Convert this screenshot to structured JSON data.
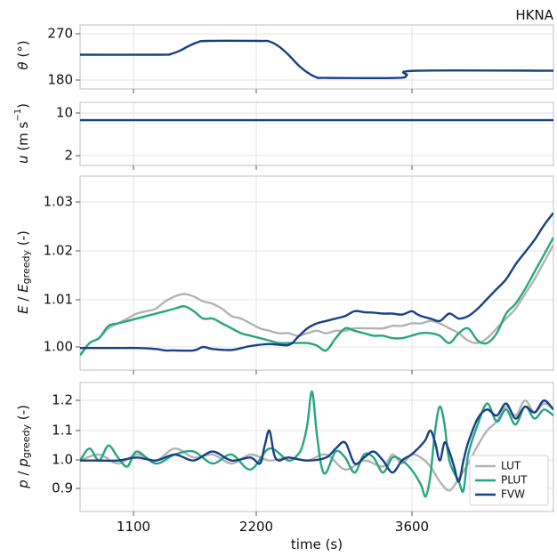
{
  "figure_title": "HKNA",
  "x_label": "time (s)",
  "x_ticks": [
    "1100",
    "2200",
    "3600"
  ],
  "colors": {
    "LUT": "#b3b3b3",
    "PLUT": "#26a67e",
    "FVW": "#183f86",
    "grid": "#e3e3e3",
    "spine": "#c8c8c8"
  },
  "legend": [
    "LUT",
    "PLUT",
    "FVW"
  ],
  "chart_data": [
    {
      "type": "line",
      "ylabel": "θ (°)",
      "yticks": [
        "180",
        "270"
      ],
      "ylim": [
        168,
        284
      ],
      "xlim": [
        0,
        5000
      ],
      "series": [
        {
          "name": "FVW",
          "x": [
            0,
            850,
            950,
            1050,
            1150,
            1250,
            1350,
            1900,
            2000,
            2100,
            2200,
            2300,
            2400,
            2500,
            2600,
            3350,
            3450,
            3550,
            5000
          ],
          "y": [
            230,
            230,
            231,
            237,
            246,
            253,
            255,
            255,
            254,
            245,
            230,
            212,
            198,
            189,
            188,
            188,
            193,
            201,
            201
          ]
        }
      ]
    },
    {
      "type": "line",
      "ylabel": "u (ms⁻¹)",
      "yticks": [
        "2",
        "10"
      ],
      "ylim": [
        0,
        12
      ],
      "xlim": [
        0,
        5000
      ],
      "series": [
        {
          "name": "FVW",
          "x": [
            0,
            5000
          ],
          "y": [
            8.6,
            8.6
          ]
        }
      ]
    },
    {
      "type": "line",
      "ylabel": "E / E_greedy (-)",
      "yticks": [
        "1.00",
        "1.01",
        "1.02",
        "1.03"
      ],
      "ylim": [
        0.9955,
        1.035
      ],
      "xlim": [
        0,
        5000
      ],
      "series": [
        {
          "name": "LUT",
          "x": [
            0,
            100,
            200,
            300,
            400,
            500,
            600,
            700,
            800,
            900,
            1000,
            1100,
            1200,
            1300,
            1400,
            1500,
            1600,
            1700,
            1800,
            1900,
            2000,
            2100,
            2200,
            2300,
            2400,
            2500,
            2600,
            2700,
            2800,
            2900,
            3000,
            3100,
            3200,
            3300,
            3400,
            3500,
            3600,
            3700,
            3800,
            3900,
            4000,
            4100,
            4200,
            4300,
            4400,
            4500,
            4600,
            4700,
            4800,
            4900,
            5000
          ],
          "y": [
            0.9985,
            1.001,
            1.002,
            1.004,
            1.005,
            1.006,
            1.007,
            1.0075,
            1.008,
            1.0095,
            1.0105,
            1.011,
            1.0105,
            1.0095,
            1.009,
            1.008,
            1.0065,
            1.006,
            1.005,
            1.004,
            1.0035,
            1.003,
            1.003,
            1.0025,
            1.003,
            1.0035,
            1.003,
            1.0035,
            1.0035,
            1.004,
            1.004,
            1.004,
            1.004,
            1.0045,
            1.0045,
            1.005,
            1.005,
            1.0055,
            1.005,
            1.004,
            1.003,
            1.0015,
            1.001,
            1.002,
            1.004,
            1.006,
            1.008,
            1.011,
            1.014,
            1.0175,
            1.021
          ]
        },
        {
          "name": "PLUT",
          "x": [
            0,
            100,
            200,
            300,
            400,
            500,
            600,
            700,
            800,
            900,
            1000,
            1100,
            1200,
            1300,
            1400,
            1500,
            1600,
            1700,
            1800,
            1900,
            2000,
            2100,
            2200,
            2300,
            2400,
            2500,
            2600,
            2700,
            2800,
            2900,
            3000,
            3100,
            3200,
            3300,
            3400,
            3500,
            3600,
            3700,
            3800,
            3900,
            4000,
            4100,
            4200,
            4300,
            4400,
            4500,
            4600,
            4700,
            4800,
            4900,
            5000
          ],
          "y": [
            0.9985,
            1.001,
            1.002,
            1.0045,
            1.005,
            1.0055,
            1.006,
            1.0065,
            1.007,
            1.0075,
            1.008,
            1.0085,
            1.0075,
            1.006,
            1.006,
            1.005,
            1.004,
            1.003,
            1.0025,
            1.002,
            1.0015,
            1.001,
            1.001,
            1.001,
            1.001,
            1.0005,
            0.9995,
            1.002,
            1.004,
            1.0035,
            1.003,
            1.0025,
            1.0025,
            1.002,
            1.002,
            1.0025,
            1.003,
            1.003,
            1.0025,
            1.001,
            1.003,
            1.004,
            1.0015,
            1.001,
            1.003,
            1.007,
            1.009,
            1.012,
            1.0155,
            1.019,
            1.0225
          ]
        },
        {
          "name": "FVW",
          "x": [
            0,
            200,
            400,
            600,
            800,
            900,
            1000,
            1200,
            1300,
            1400,
            1600,
            1800,
            2000,
            2200,
            2300,
            2400,
            2500,
            2600,
            2700,
            2800,
            2900,
            3000,
            3100,
            3200,
            3300,
            3400,
            3500,
            3550,
            3600,
            3700,
            3800,
            3900,
            4000,
            4100,
            4200,
            4300,
            4400,
            4500,
            4600,
            4700,
            4800,
            4900,
            5000
          ],
          "y": [
            1.0,
            1.0,
            1.0,
            1.0,
            0.9998,
            0.9995,
            0.9995,
            0.9995,
            1.0002,
            0.9998,
            0.9996,
            1.0004,
            1.0008,
            1.0006,
            1.0022,
            1.004,
            1.005,
            1.0055,
            1.006,
            1.0065,
            1.0075,
            1.0073,
            1.0072,
            1.007,
            1.007,
            1.0068,
            1.0075,
            1.007,
            1.0065,
            1.006,
            1.0055,
            1.007,
            1.006,
            1.0065,
            1.008,
            1.01,
            1.012,
            1.014,
            1.017,
            1.0195,
            1.022,
            1.025,
            1.0275
          ]
        }
      ]
    },
    {
      "type": "line",
      "ylabel": "p / p_greedy (-)",
      "yticks": [
        "0.9",
        "1.0",
        "1.1",
        "1.2"
      ],
      "ylim": [
        0.83,
        1.26
      ],
      "xlim": [
        0,
        5000
      ],
      "series": [
        {
          "name": "LUT",
          "x": [
            0,
            200,
            400,
            600,
            800,
            1000,
            1200,
            1400,
            1600,
            1800,
            2000,
            2200,
            2400,
            2600,
            2800,
            3000,
            3200,
            3300,
            3400,
            3500,
            3600,
            3700,
            3800,
            3900,
            4000,
            4100,
            4200,
            4300,
            4400,
            4500,
            4600,
            4700,
            4800,
            4900,
            5000
          ],
          "y": [
            1.0,
            1.02,
            0.99,
            1.02,
            1.0,
            1.04,
            1.01,
            1.02,
            0.99,
            1.02,
            1.0,
            1.01,
            1.0,
            1.02,
            0.97,
            1.0,
            0.98,
            1.02,
            0.99,
            1.02,
            1.01,
            0.98,
            0.93,
            0.9,
            0.94,
            0.99,
            1.05,
            1.1,
            1.13,
            1.18,
            1.15,
            1.2,
            1.16,
            1.19,
            1.17
          ]
        },
        {
          "name": "PLUT",
          "x": [
            0,
            100,
            200,
            300,
            400,
            500,
            600,
            800,
            1000,
            1200,
            1400,
            1600,
            1800,
            2000,
            2200,
            2300,
            2350,
            2400,
            2450,
            2500,
            2550,
            2600,
            2700,
            2800,
            2900,
            3000,
            3100,
            3200,
            3300,
            3400,
            3500,
            3600,
            3650,
            3700,
            3750,
            3800,
            3850,
            3900,
            4000,
            4050,
            4100,
            4200,
            4300,
            4400,
            4500,
            4600,
            4700,
            4800,
            4900,
            5000
          ],
          "y": [
            1.0,
            1.04,
            1.0,
            1.05,
            1.01,
            0.98,
            1.03,
            0.99,
            1.02,
            1.03,
            0.99,
            1.02,
            0.97,
            1.04,
            1.0,
            1.02,
            1.05,
            1.12,
            1.23,
            1.09,
            0.98,
            0.96,
            1.03,
            1.01,
            0.96,
            1.02,
            1.01,
            0.96,
            1.01,
            1.0,
            0.97,
            0.92,
            0.88,
            0.95,
            1.1,
            1.18,
            1.12,
            1.0,
            0.93,
            0.9,
            1.02,
            1.12,
            1.19,
            1.13,
            1.17,
            1.12,
            1.18,
            1.14,
            1.17,
            1.15
          ]
        },
        {
          "name": "FVW",
          "x": [
            0,
            200,
            400,
            600,
            800,
            1000,
            1200,
            1400,
            1600,
            1800,
            1900,
            1950,
            2000,
            2050,
            2100,
            2200,
            2400,
            2600,
            2700,
            2800,
            2900,
            3000,
            3100,
            3200,
            3300,
            3400,
            3500,
            3600,
            3650,
            3700,
            3750,
            3800,
            3850,
            3900,
            3950,
            4000,
            4050,
            4100,
            4200,
            4300,
            4400,
            4500,
            4600,
            4700,
            4800,
            4900,
            5000
          ],
          "y": [
            1.0,
            1.0,
            1.0,
            1.01,
            1.0,
            1.02,
            1.0,
            1.03,
            1.0,
            1.01,
            0.99,
            1.05,
            1.1,
            1.02,
            1.0,
            1.01,
            1.0,
            1.01,
            1.04,
            1.06,
            0.99,
            1.01,
            1.03,
            1.0,
            0.96,
            1.0,
            1.02,
            1.05,
            1.07,
            1.1,
            1.06,
            1.0,
            1.06,
            1.03,
            0.98,
            0.93,
            1.0,
            1.06,
            1.14,
            1.17,
            1.15,
            1.19,
            1.14,
            1.18,
            1.16,
            1.2,
            1.17
          ]
        }
      ]
    }
  ]
}
